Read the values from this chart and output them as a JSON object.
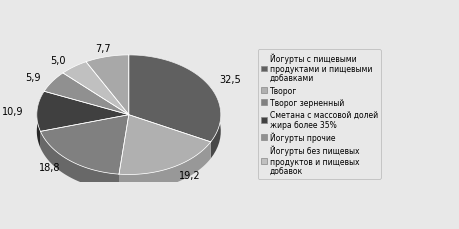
{
  "values": [
    32.5,
    19.2,
    18.8,
    10.9,
    5.9,
    5.0,
    7.7
  ],
  "labels": [
    "32,5",
    "19,2",
    "18,8",
    "10,9",
    "5,9",
    "5,0",
    "7,7"
  ],
  "colors": [
    "#606060",
    "#b0b0b0",
    "#808080",
    "#404040",
    "#909090",
    "#c0c0c0",
    "#a8a8a8"
  ],
  "edge_colors": [
    "#484848",
    "#989898",
    "#686868",
    "#282828",
    "#787878",
    "#a8a8a8",
    "#909090"
  ],
  "legend_labels": [
    "Йогурты с пищевыми\nпродуктами и пищевыми\nдобавками",
    "Творог",
    "Творог зерненный",
    "Сметана с массовой долей\nжира более 35%",
    "Йогурты прочие",
    "Йогурты без пищевых\nпродуктов и пищевых\nдобавок"
  ],
  "legend_patch_colors": [
    "#606060",
    "#b0b0b0",
    "#808080",
    "#404040",
    "#909090",
    "#c0c0c0"
  ],
  "startangle": 90,
  "background_color": "#e8e8e8",
  "label_fontsize": 7,
  "legend_fontsize": 5.5,
  "figsize": [
    4.6,
    2.3
  ],
  "dpi": 100
}
